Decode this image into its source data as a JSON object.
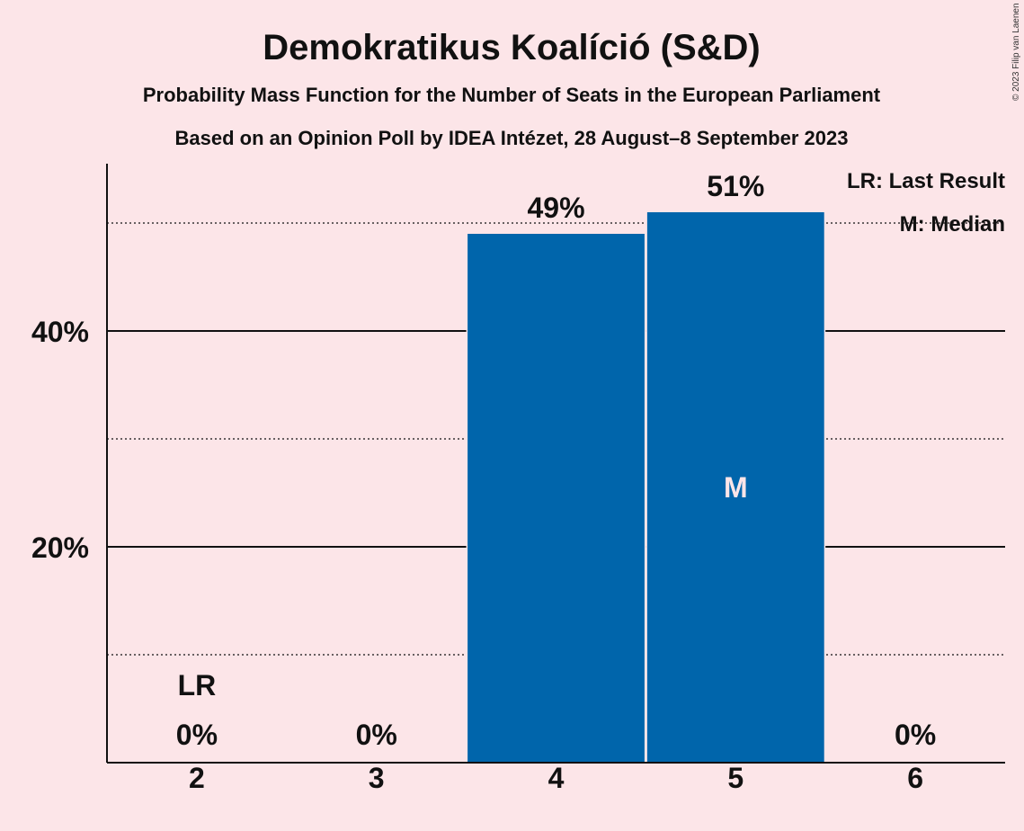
{
  "chart_data": {
    "type": "bar",
    "title": "Demokratikus Koalíció (S&D)",
    "subtitle": "Probability Mass Function for the Number of Seats in the European Parliament",
    "subtitle2": "Based on an Opinion Poll by IDEA Intézet, 28 August–8 September 2023",
    "categories": [
      "2",
      "3",
      "4",
      "5",
      "6"
    ],
    "values": [
      0,
      0,
      49,
      51,
      0
    ],
    "value_labels": [
      "0%",
      "0%",
      "49%",
      "51%",
      "0%"
    ],
    "ylim": [
      0,
      55
    ],
    "yticks": [
      {
        "value": 20,
        "label": "20%"
      },
      {
        "value": 40,
        "label": "40%"
      }
    ],
    "minor_gridlines": [
      10,
      30,
      50
    ],
    "last_result_category": "2",
    "last_result_marker": "LR",
    "median_category": "5",
    "median_marker": "M",
    "legend": {
      "placement": "top-right",
      "items": [
        "LR: Last Result",
        "M: Median"
      ]
    },
    "bar_color": "#0065ab",
    "copyright": "© 2023 Filip van Laenen"
  }
}
